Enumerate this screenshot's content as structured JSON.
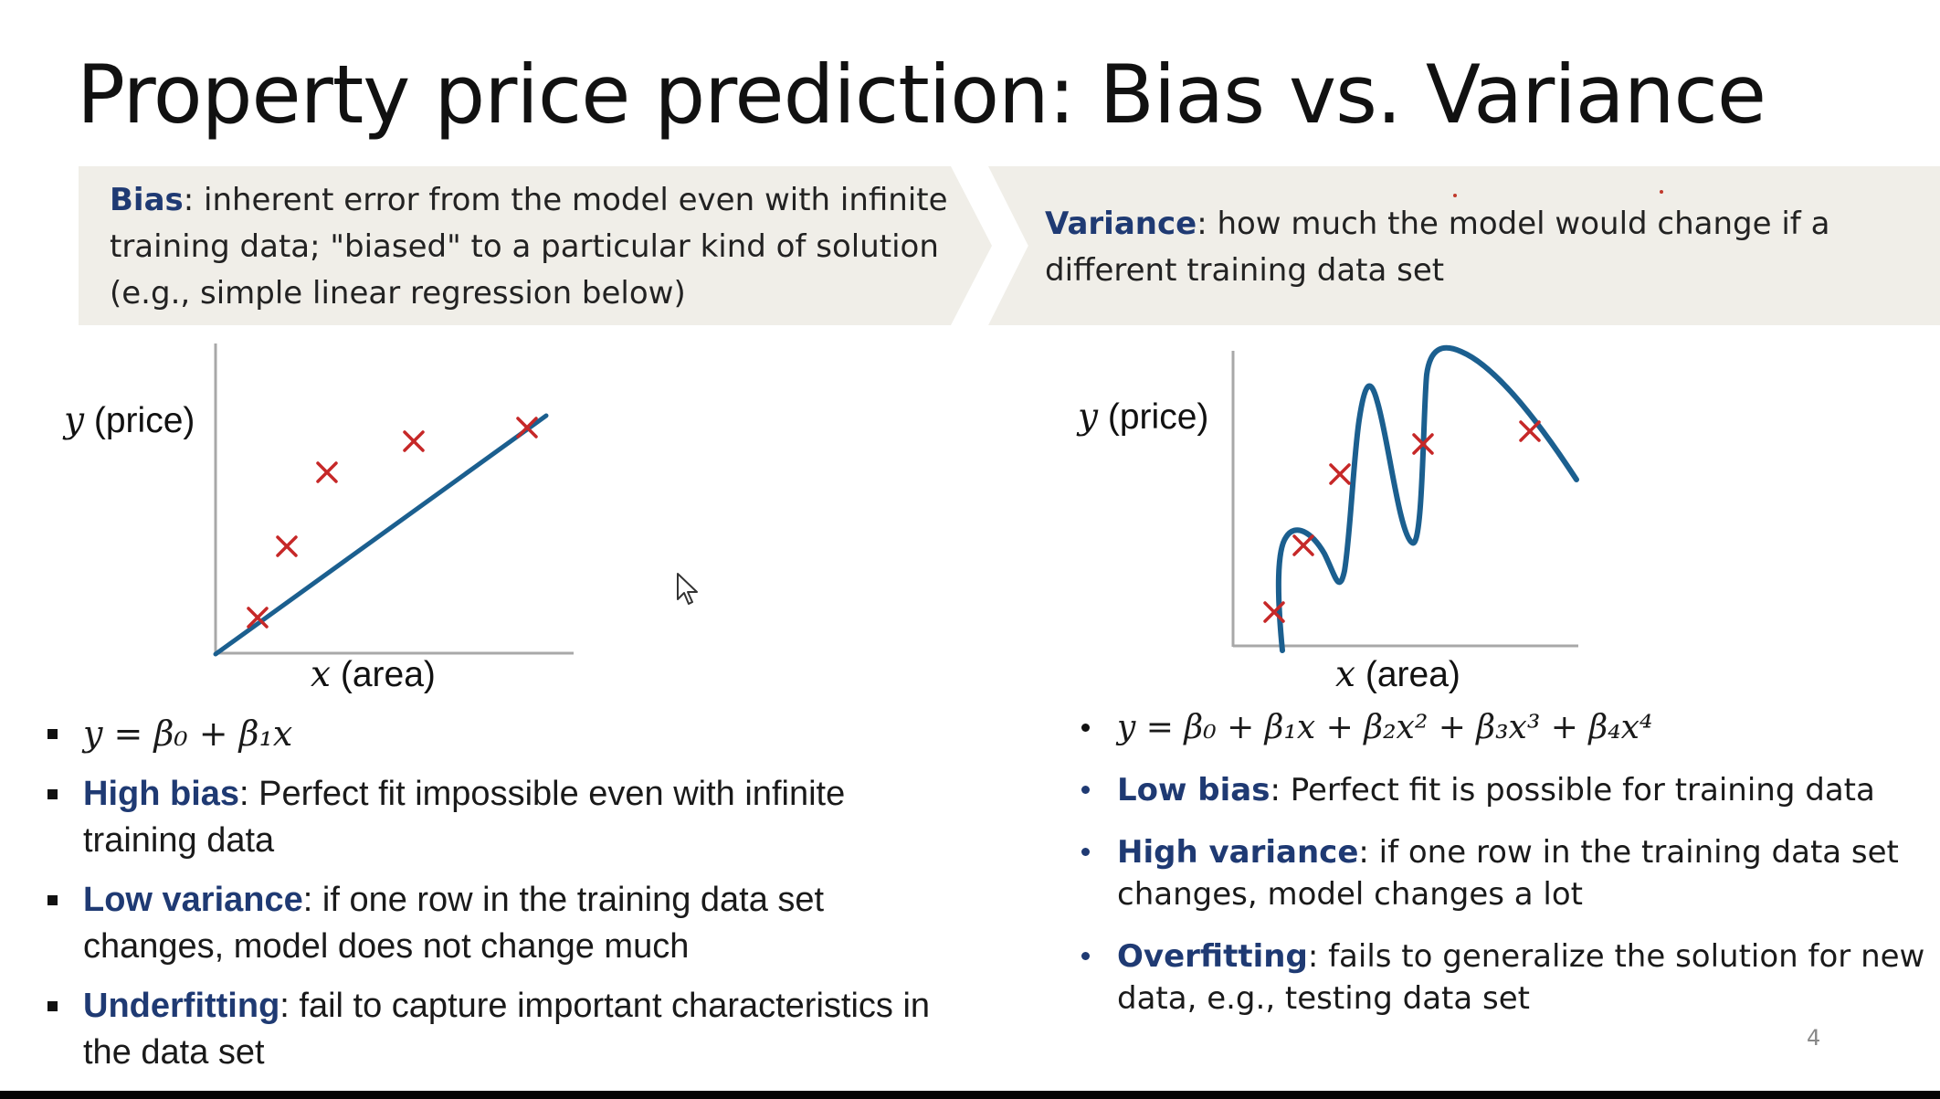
{
  "slide": {
    "title": "Property price prediction: Bias vs. Variance",
    "page_number": "4"
  },
  "bias_banner": {
    "keyword": "Bias",
    "text": ": inherent error from the model even with infinite training data; \"biased\" to a particular kind of solution (e.g., simple linear regression below)"
  },
  "variance_banner": {
    "keyword": "Variance",
    "text": ": how much the model would change if a different training data set"
  },
  "left_plot": {
    "y_label_var": "y",
    "y_label_text": " (price)",
    "x_label_var": "x",
    "x_label_text": " (area)"
  },
  "right_plot": {
    "y_label_var": "y",
    "y_label_text": " (price)",
    "x_label_var": "x",
    "x_label_text": " (area)"
  },
  "left_bullets": {
    "equation": "y =  β₀ + β₁x",
    "high_bias_kw": "High bias",
    "high_bias_text": ": Perfect fit impossible even with infinite training data",
    "low_variance_kw": "Low variance",
    "low_variance_text": ": if one row in the training data set changes, model does not change much",
    "underfitting_kw": "Underfitting",
    "underfitting_text": ": fail to capture important characteristics in the data set"
  },
  "right_bullets": {
    "equation": "y =  β₀ + β₁x + β₂x² + β₃x³ +  β₄x⁴",
    "low_bias_kw": "Low bias",
    "low_bias_text": ": Perfect fit is possible for training data",
    "high_variance_kw": "High variance",
    "high_variance_text": ": if one row in the training data set changes, model changes a lot",
    "overfitting_kw": "Overfitting",
    "overfitting_text": ": fails to generalize the solution for new data, e.g., testing data set"
  },
  "colors": {
    "keyword": "#1f3a73",
    "curve": "#1b5f8f",
    "marker": "#c62828",
    "banner": "#f0eee8"
  },
  "icons": {
    "cursor": "mouse-pointer-icon",
    "marker": "x-mark-icon"
  }
}
